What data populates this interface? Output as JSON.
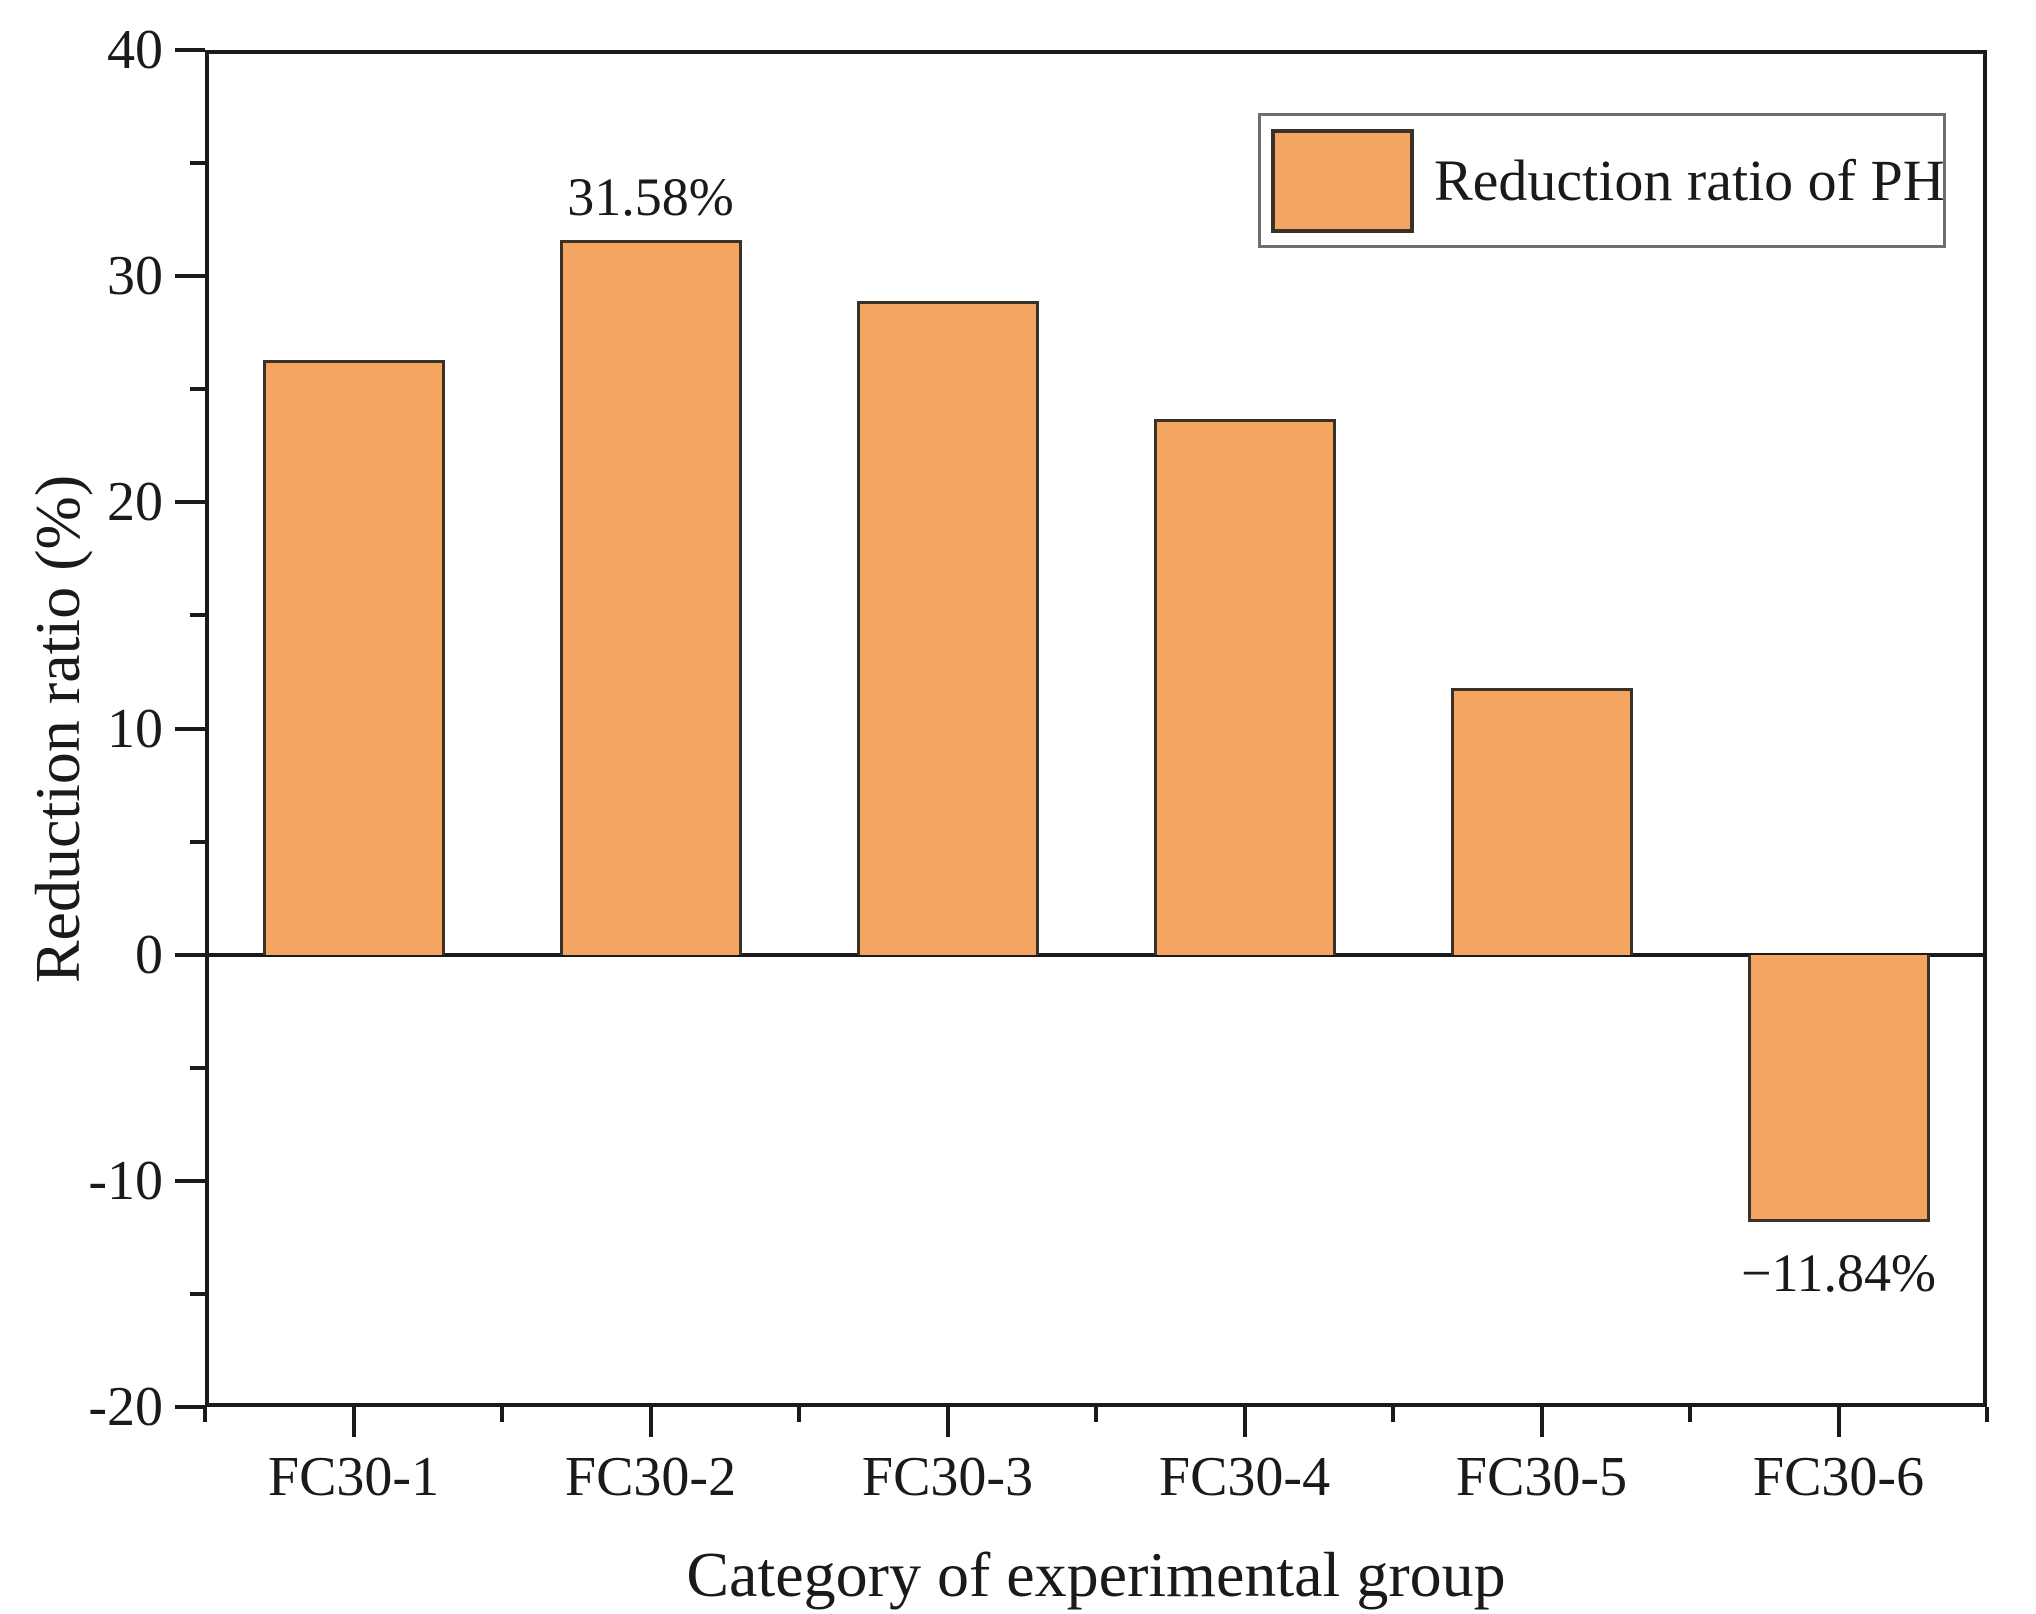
{
  "chart_data": {
    "type": "bar",
    "categories": [
      "FC30-1",
      "FC30-2",
      "FC30-3",
      "FC30-4",
      "FC30-5",
      "FC30-6"
    ],
    "values": [
      26.3,
      31.58,
      28.9,
      23.7,
      11.8,
      -11.84
    ],
    "annotations": [
      {
        "category_index": 1,
        "text": "31.58%"
      },
      {
        "category_index": 5,
        "text": "−11.84%"
      }
    ],
    "series_name": "Reduction ratio of PH",
    "xlabel": "Category of experimental group",
    "ylabel": "Reduction ratio (%)",
    "ylim": [
      -20,
      40
    ],
    "y_major_ticks": [
      {
        "value": 40,
        "label": "40"
      },
      {
        "value": 30,
        "label": "30"
      },
      {
        "value": 20,
        "label": "20"
      },
      {
        "value": 10,
        "label": "10"
      },
      {
        "value": 0,
        "label": "0"
      },
      {
        "value": -10,
        "label": "-10"
      },
      {
        "value": -20,
        "label": "-20"
      }
    ],
    "y_minor_ticks": [
      35,
      25,
      15,
      5,
      -5,
      -15
    ],
    "grid": "off",
    "legend_position": "top-right",
    "bar_color": "#F4A562",
    "bar_edge_color": "#3A3128",
    "axis_color": "#1a1a1a"
  },
  "legend": {
    "label": "Reduction ratio of PH"
  }
}
